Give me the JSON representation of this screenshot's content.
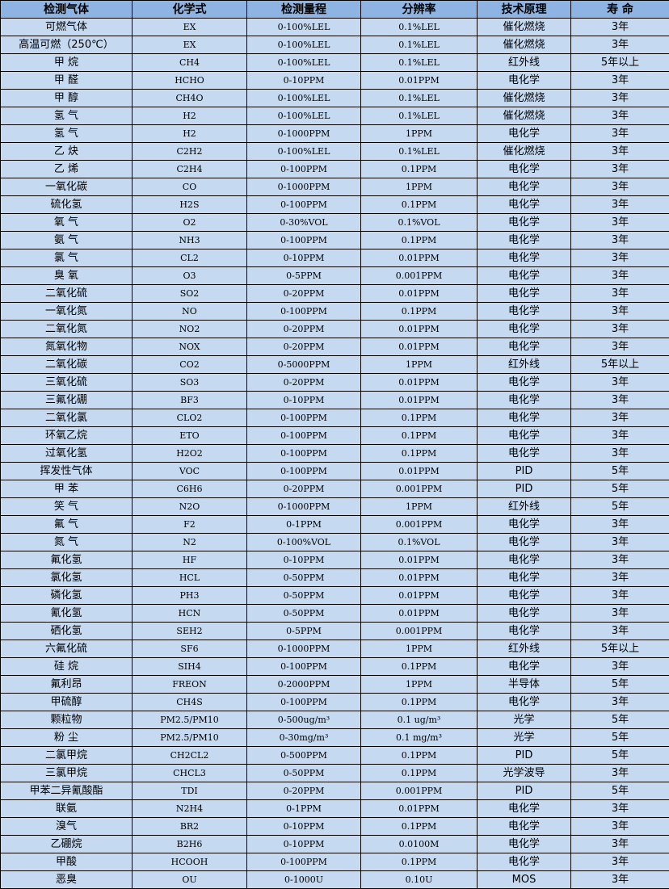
{
  "colors": {
    "header_bg": "#8db4e2",
    "row_bg": "#c5d9f1",
    "border": "#000000"
  },
  "headers": [
    "检测气体",
    "化学式",
    "检测量程",
    "分辨率",
    "技术原理",
    "寿 命"
  ],
  "rows": [
    [
      "可燃气体",
      "EX",
      "0-100%LEL",
      "0.1%LEL",
      "催化燃烧",
      "3年"
    ],
    [
      "高温可燃（250℃）",
      "EX",
      "0-100%LEL",
      "0.1%LEL",
      "催化燃烧",
      "3年"
    ],
    [
      "甲 烷",
      "CH4",
      "0-100%LEL",
      "0.1%LEL",
      "红外线",
      "5年以上"
    ],
    [
      "甲 醛",
      "HCHO",
      "0-10PPM",
      "0.01PPM",
      "电化学",
      "3年"
    ],
    [
      "甲 醇",
      "CH4O",
      "0-100%LEL",
      "0.1%LEL",
      "催化燃烧",
      "3年"
    ],
    [
      "氢 气",
      "H2",
      "0-100%LEL",
      "0.1%LEL",
      "催化燃烧",
      "3年"
    ],
    [
      "氢 气",
      "H2",
      "0-1000PPM",
      "1PPM",
      "电化学",
      "3年"
    ],
    [
      "乙 炔",
      "C2H2",
      "0-100%LEL",
      "0.1%LEL",
      "催化燃烧",
      "3年"
    ],
    [
      "乙 烯",
      "C2H4",
      "0-100PPM",
      "0.1PPM",
      "电化学",
      "3年"
    ],
    [
      "一氧化碳",
      "CO",
      "0-1000PPM",
      "1PPM",
      "电化学",
      "3年"
    ],
    [
      "硫化氢",
      "H2S",
      "0-100PPM",
      "0.1PPM",
      "电化学",
      "3年"
    ],
    [
      "氧 气",
      "O2",
      "0-30%VOL",
      "0.1%VOL",
      "电化学",
      "3年"
    ],
    [
      "氨 气",
      "NH3",
      "0-100PPM",
      "0.1PPM",
      "电化学",
      "3年"
    ],
    [
      "氯 气",
      "CL2",
      "0-10PPM",
      "0.01PPM",
      "电化学",
      "3年"
    ],
    [
      "臭 氧",
      "O3",
      "0-5PPM",
      "0.001PPM",
      "电化学",
      "3年"
    ],
    [
      "二氧化硫",
      "SO2",
      "0-20PPM",
      "0.01PPM",
      "电化学",
      "3年"
    ],
    [
      "一氧化氮",
      "NO",
      "0-100PPM",
      "0.1PPM",
      "电化学",
      "3年"
    ],
    [
      "二氧化氮",
      "NO2",
      "0-20PPM",
      "0.01PPM",
      "电化学",
      "3年"
    ],
    [
      "氮氧化物",
      "NOX",
      "0-20PPM",
      "0.01PPM",
      "电化学",
      "3年"
    ],
    [
      "二氧化碳",
      "CO2",
      "0-5000PPM",
      "1PPM",
      "红外线",
      "5年以上"
    ],
    [
      "三氧化硫",
      "SO3",
      "0-20PPM",
      "0.01PPM",
      "电化学",
      "3年"
    ],
    [
      "三氟化硼",
      "BF3",
      "0-10PPM",
      "0.01PPM",
      "电化学",
      "3年"
    ],
    [
      "二氧化氯",
      "CLO2",
      "0-100PPM",
      "0.1PPM",
      "电化学",
      "3年"
    ],
    [
      "环氧乙烷",
      "ETO",
      "0-100PPM",
      "0.1PPM",
      "电化学",
      "3年"
    ],
    [
      "过氧化氢",
      "H2O2",
      "0-100PPM",
      "0.1PPM",
      "电化学",
      "3年"
    ],
    [
      "挥发性气体",
      "VOC",
      "0-100PPM",
      "0.01PPM",
      "PID",
      "5年"
    ],
    [
      "甲 苯",
      "C6H6",
      "0-20PPM",
      "0.001PPM",
      "PID",
      "5年"
    ],
    [
      "笑 气",
      "N2O",
      "0-1000PPM",
      "1PPM",
      "红外线",
      "5年"
    ],
    [
      "氟 气",
      "F2",
      "0-1PPM",
      "0.001PPM",
      "电化学",
      "3年"
    ],
    [
      "氮 气",
      "N2",
      "0-100%VOL",
      "0.1%VOL",
      "电化学",
      "3年"
    ],
    [
      "氟化氢",
      "HF",
      "0-10PPM",
      "0.01PPM",
      "电化学",
      "3年"
    ],
    [
      "氯化氢",
      "HCL",
      "0-50PPM",
      "0.01PPM",
      "电化学",
      "3年"
    ],
    [
      "磷化氢",
      "PH3",
      "0-50PPM",
      "0.01PPM",
      "电化学",
      "3年"
    ],
    [
      "氰化氢",
      "HCN",
      "0-50PPM",
      "0.01PPM",
      "电化学",
      "3年"
    ],
    [
      "硒化氢",
      "SEH2",
      "0-5PPM",
      "0.001PPM",
      "电化学",
      "3年"
    ],
    [
      "六氟化硫",
      "SF6",
      "0-1000PPM",
      "1PPM",
      "红外线",
      "5年以上"
    ],
    [
      "硅 烷",
      "SIH4",
      "0-100PPM",
      "0.1PPM",
      "电化学",
      "3年"
    ],
    [
      "氟利昂",
      "FREON",
      "0-2000PPM",
      "1PPM",
      "半导体",
      "5年"
    ],
    [
      "甲硫醇",
      "CH4S",
      "0-100PPM",
      "0.1PPM",
      "电化学",
      "3年"
    ],
    [
      "颗粒物",
      "PM2.5/PM10",
      "0-500ug/m³",
      "0.1 ug/m³",
      "光学",
      "5年"
    ],
    [
      "粉 尘",
      "PM2.5/PM10",
      "0-30mg/m³",
      "0.1 mg/m³",
      "光学",
      "5年"
    ],
    [
      "二氯甲烷",
      "CH2CL2",
      "0-500PPM",
      "0.1PPM",
      "PID",
      "5年"
    ],
    [
      "三氯甲烷",
      "CHCL3",
      "0-50PPM",
      "0.1PPM",
      "光学波导",
      "3年"
    ],
    [
      "甲苯二异氰酸酯",
      "TDI",
      "0-20PPM",
      "0.001PPM",
      "PID",
      "5年"
    ],
    [
      "联氨",
      "N2H4",
      "0-1PPM",
      "0.01PPM",
      "电化学",
      "3年"
    ],
    [
      "溴气",
      "BR2",
      "0-10PPM",
      "0.1PPM",
      "电化学",
      "3年"
    ],
    [
      "乙硼烷",
      "B2H6",
      "0-10PPM",
      "0.0100M",
      "电化学",
      "3年"
    ],
    [
      "甲酸",
      "HCOOH",
      "0-100PPM",
      "0.1PPM",
      "电化学",
      "3年"
    ],
    [
      "恶臭",
      "OU",
      "0-1000U",
      "0.10U",
      "MOS",
      "3年"
    ]
  ]
}
